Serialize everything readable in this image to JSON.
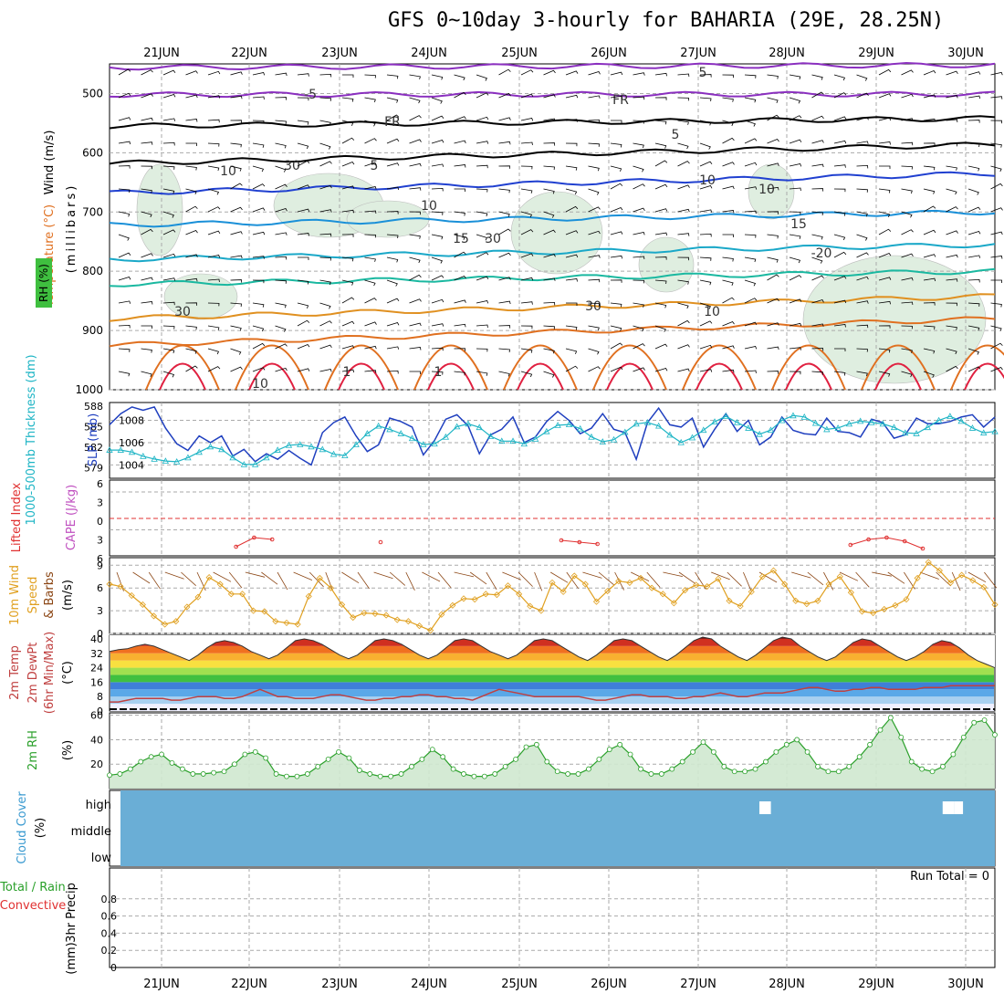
{
  "title": "GFS 0~10day 3-hourly for BAHARIA (29E, 28.25N)",
  "colors": {
    "grid": "#aaaaaa",
    "wind": "#000000",
    "slp": "#1f3fbf",
    "thickness": "#1fb5c5",
    "lifted": "#e03030",
    "wind10": "#e0a020",
    "rh2m": "#2aa02a",
    "cloud": "#6aaed6",
    "dewpt": "#c04040"
  },
  "dates": [
    "21JUN",
    "22JUN",
    "23JUN",
    "24JUN",
    "25JUN",
    "26JUN",
    "27JUN",
    "28JUN",
    "29JUN",
    "30JUN"
  ],
  "panel_labels": {
    "upper": {
      "rh": "RH (%)",
      "temp": "Temperature (°C)",
      "wind": "Wind (m/s)",
      "unit": "(millibars)"
    },
    "slp": {
      "thick": "1000-500mb Thickness (dm)",
      "slp": "SLP (mb)"
    },
    "cape": {
      "li": "Lifted Index",
      "cape": "CAPE (J/kg)"
    },
    "wind10": {
      "l1": "10m Wind",
      "l2": "Speed",
      "l3": "& Barbs",
      "unit": "(m/s)"
    },
    "temp2m": {
      "l1": "2m Temp",
      "l2": "2m DewPt",
      "l3": "(6hr Min/Max)",
      "unit": "(°C)"
    },
    "rh2m": {
      "l1": "2m RH",
      "unit": "(%)"
    },
    "cloud": {
      "l1": "Cloud Cover",
      "unit": "(%)"
    },
    "precip": {
      "l1": "Total / Rain",
      "l2": "Convective",
      "l3": "3hr Precip",
      "unit": "(mm)"
    }
  },
  "run_total": "Run Total = 0",
  "chart_data": [
    {
      "type": "line",
      "panel": "upper_air",
      "yticks": [
        500,
        600,
        700,
        800,
        900,
        1000
      ],
      "ylim": [
        450,
        1000
      ],
      "contour_labels": [
        "5",
        "-5",
        "FR",
        "FR",
        "5",
        "5",
        "10",
        "10",
        "10",
        "15",
        "15",
        "-20",
        "30",
        "30",
        "30",
        "30",
        "10",
        "10",
        "10",
        "1",
        "1"
      ],
      "temperature_levels_mb_start": [
        456,
        502,
        555,
        618,
        668,
        722,
        780,
        822,
        880,
        925
      ],
      "temperature_levels_mb_end": [
        452,
        501,
        542,
        586,
        635,
        700,
        755,
        800,
        842,
        880
      ]
    },
    {
      "type": "line",
      "panel": "slp_thickness",
      "series": [
        {
          "name": "SLP (mb)",
          "axis": "right",
          "ticks": [
            1004,
            1006,
            1008
          ],
          "values": [
            1007.6,
            1008.6,
            1009.2,
            1008.9,
            1009.2,
            1007.3,
            1005.9,
            1005.3,
            1006.6,
            1006.0,
            1006.6,
            1004.8,
            1005.4,
            1004.3,
            1005.0,
            1004.5,
            1005.3,
            1004.6,
            1004.0,
            1006.9,
            1007.8,
            1008.3,
            1006.6,
            1005.2,
            1005.8,
            1008.2,
            1007.9,
            1007.4,
            1004.9,
            1006.2,
            1008.1,
            1008.5,
            1007.5,
            1005.0,
            1006.7,
            1007.2,
            1008.3,
            1006.0,
            1006.5,
            1007.9,
            1008.8,
            1008.0,
            1006.8,
            1007.3,
            1008.6,
            1007.2,
            1006.9,
            1004.5,
            1007.8,
            1009.1,
            1007.6,
            1007.4,
            1008.2,
            1005.6,
            1007.2,
            1008.6,
            1007.0,
            1008.0,
            1005.8,
            1006.5,
            1008.3,
            1007.1,
            1006.8,
            1006.7,
            1008.2,
            1007.0,
            1006.9,
            1006.5,
            1008.1,
            1007.8,
            1006.4,
            1006.7,
            1008.2,
            1007.7,
            1007.7,
            1007.9,
            1008.3,
            1008.5,
            1007.4,
            1008.3
          ]
        },
        {
          "name": "1000-500mb Thickness (dm)",
          "axis": "left",
          "ticks": [
            579,
            582,
            585,
            588
          ],
          "values": [
            581.6,
            581.6,
            581.3,
            580.7,
            580.3,
            580.0,
            579.9,
            580.5,
            581.3,
            582.1,
            581.7,
            580.5,
            579.5,
            579.5,
            580.5,
            581.6,
            582.3,
            582.4,
            582.1,
            581.7,
            581.0,
            580.8,
            582.4,
            584.0,
            585.1,
            584.6,
            584.0,
            583.3,
            582.4,
            582.5,
            583.5,
            585.0,
            585.4,
            584.9,
            583.6,
            582.9,
            582.9,
            582.5,
            583.2,
            584.3,
            585.2,
            585.3,
            584.7,
            583.5,
            582.8,
            583.1,
            584.2,
            585.4,
            585.6,
            585.1,
            583.8,
            582.7,
            583.4,
            584.5,
            585.7,
            586.5,
            585.6,
            584.8,
            583.9,
            584.5,
            585.9,
            586.6,
            586.4,
            585.5,
            584.6,
            584.8,
            585.4,
            585.8,
            585.6,
            585.4,
            584.9,
            584.1,
            584.0,
            584.9,
            585.9,
            586.5,
            585.8,
            584.8,
            584.1,
            584.3
          ]
        }
      ]
    },
    {
      "type": "line",
      "panel": "cape_lifted_index",
      "yticks_labels": [
        "6",
        "3",
        "0",
        "3",
        "6"
      ],
      "series": [
        {
          "name": "Lifted Index",
          "values": [
            null,
            null,
            null,
            null,
            null,
            null,
            null,
            5.0,
            4.0,
            4.2,
            null,
            null,
            null,
            null,
            null,
            4.5,
            null,
            null,
            null,
            null,
            null,
            null,
            null,
            null,
            null,
            4.3,
            4.5,
            4.7,
            null,
            null,
            null,
            null,
            null,
            null,
            null,
            null,
            null,
            null,
            null,
            null,
            null,
            4.8,
            4.2,
            4.0,
            4.4,
            5.2
          ]
        }
      ]
    },
    {
      "type": "line",
      "panel": "wind10m",
      "yticks": [
        0,
        3,
        6,
        9
      ],
      "ylim": [
        0,
        10
      ],
      "series": [
        {
          "name": "10m Wind Speed",
          "values": [
            6.5,
            6.2,
            5.0,
            3.8,
            2.3,
            1.2,
            1.6,
            3.5,
            4.8,
            7.4,
            6.5,
            5.2,
            5.2,
            3.0,
            2.9,
            1.6,
            1.4,
            1.2,
            4.9,
            7.3,
            6.0,
            3.8,
            2.1,
            2.7,
            2.6,
            2.4,
            1.8,
            1.6,
            1.0,
            0.4,
            2.5,
            3.7,
            4.6,
            4.5,
            5.2,
            5.1,
            6.3,
            5.2,
            3.6,
            3.0,
            6.7,
            5.5,
            7.6,
            6.5,
            4.2,
            5.6,
            6.9,
            6.7,
            7.3,
            6.0,
            5.2,
            4.0,
            5.7,
            6.4,
            6.2,
            7.2,
            4.3,
            3.6,
            5.5,
            7.5,
            8.3,
            6.5,
            4.3,
            3.9,
            4.3,
            6.5,
            7.5,
            5.4,
            2.9,
            2.7,
            3.2,
            3.7,
            4.5,
            7.3,
            9.4,
            8.3,
            6.7,
            7.7,
            7.0,
            6.1,
            3.8
          ]
        }
      ]
    },
    {
      "type": "area",
      "panel": "temp2m",
      "yticks": [
        0,
        8,
        16,
        24,
        32,
        40
      ],
      "ylim": [
        0,
        42
      ],
      "series": [
        {
          "name": "2m Temp",
          "values": [
            33,
            34,
            34.5,
            36,
            37,
            36,
            34,
            32,
            30,
            28,
            31,
            35,
            38,
            39,
            38,
            36,
            33,
            31,
            29,
            31,
            35,
            39,
            40,
            39,
            37,
            34,
            31,
            29,
            31,
            35,
            39,
            40,
            39,
            37,
            34,
            31,
            29,
            31,
            35,
            39,
            40,
            39,
            36,
            33,
            31,
            29,
            31,
            35,
            39,
            40,
            39,
            36,
            33,
            30,
            28,
            31,
            35,
            39,
            40,
            39,
            36,
            33,
            30,
            28,
            31,
            35,
            39,
            41,
            40,
            36,
            33,
            30,
            28,
            31,
            35,
            39,
            41,
            40,
            36,
            33,
            30,
            28,
            30,
            34,
            38,
            40,
            39,
            36,
            33,
            30,
            28,
            30,
            33,
            37,
            39,
            38,
            35,
            31,
            28,
            26,
            24
          ]
        },
        {
          "name": "2m DewPt",
          "values": [
            5,
            5,
            6,
            7,
            7,
            7,
            7,
            6,
            6,
            7,
            8,
            8,
            8,
            7,
            7,
            8,
            10,
            12,
            10,
            8,
            8,
            7,
            7,
            7,
            8,
            9,
            9,
            8,
            7,
            6,
            6,
            7,
            7,
            8,
            8,
            9,
            9,
            8,
            8,
            7,
            7,
            6,
            8,
            10,
            12,
            11,
            10,
            9,
            8,
            8,
            8,
            8,
            8,
            8,
            7,
            6,
            6,
            7,
            8,
            9,
            9,
            8,
            8,
            8,
            7,
            7,
            8,
            8,
            9,
            10,
            9,
            8,
            8,
            9,
            10,
            10,
            10,
            11,
            12,
            13,
            13,
            12,
            11,
            11,
            12,
            12,
            13,
            13,
            12,
            12,
            12,
            12,
            13,
            13,
            13,
            14,
            14,
            14,
            14,
            14,
            14
          ]
        }
      ]
    },
    {
      "type": "area",
      "panel": "rh2m",
      "yticks": [
        20,
        40,
        60
      ],
      "ylim": [
        0,
        60
      ],
      "series": [
        {
          "name": "2m RH",
          "values": [
            11,
            12,
            16,
            22,
            26,
            28,
            21,
            16,
            12,
            12,
            13,
            14,
            20,
            28,
            30,
            25,
            12,
            10,
            10,
            12,
            18,
            24,
            30,
            25,
            15,
            12,
            10,
            10,
            12,
            18,
            24,
            32,
            26,
            16,
            12,
            10,
            10,
            12,
            18,
            24,
            34,
            36,
            22,
            14,
            12,
            12,
            16,
            24,
            32,
            36,
            28,
            16,
            12,
            12,
            16,
            22,
            30,
            38,
            30,
            18,
            14,
            14,
            16,
            22,
            30,
            36,
            40,
            30,
            18,
            14,
            14,
            18,
            26,
            36,
            48,
            58,
            42,
            22,
            16,
            14,
            18,
            28,
            42,
            54,
            56,
            44
          ]
        }
      ]
    },
    {
      "type": "area",
      "panel": "cloud_cover",
      "yticks_labels": [
        "high",
        "middle",
        "low"
      ],
      "high_cloud_gaps": [
        [
          0.734,
          0.747
        ],
        [
          0.941,
          0.954
        ],
        [
          0.954,
          0.964
        ]
      ]
    },
    {
      "type": "bar",
      "panel": "precip",
      "yticks": [
        0,
        0.2,
        0.4,
        0.6,
        0.8
      ],
      "ylim": [
        0,
        1
      ],
      "values": []
    }
  ]
}
